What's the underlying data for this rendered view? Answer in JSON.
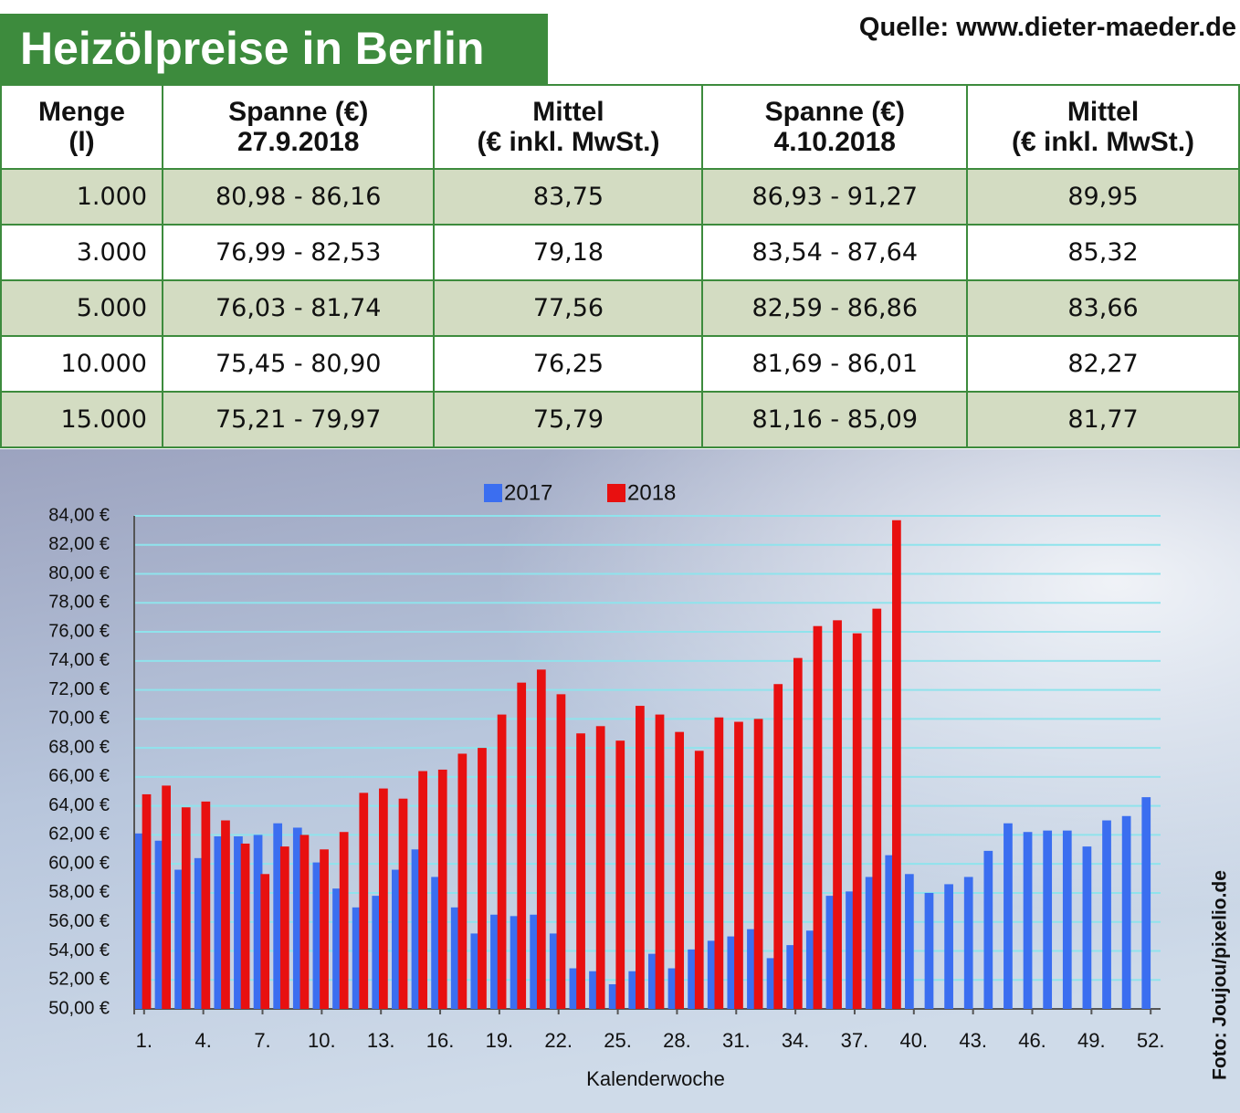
{
  "header": {
    "title": "Heizölpreise in Berlin",
    "source": "Quelle: www.dieter-maeder.de"
  },
  "table": {
    "columns": [
      [
        "Menge",
        "(l)"
      ],
      [
        "Spanne (€)",
        "27.9.2018"
      ],
      [
        "Mittel",
        "(€ inkl. MwSt.)"
      ],
      [
        "Spanne (€)",
        "4.10.2018"
      ],
      [
        "Mittel",
        "(€ inkl. MwSt.)"
      ]
    ],
    "rows": [
      [
        "1.000",
        "80,98 - 86,16",
        "83,75",
        "86,93 - 91,27",
        "89,95"
      ],
      [
        "3.000",
        "76,99 - 82,53",
        "79,18",
        "83,54 - 87,64",
        "85,32"
      ],
      [
        "5.000",
        "76,03 - 81,74",
        "77,56",
        "82,59 - 86,86",
        "83,66"
      ],
      [
        "10.000",
        "75,45 - 80,90",
        "76,25",
        "81,69 - 86,01",
        "82,27"
      ],
      [
        "15.000",
        "75,21 - 79,97",
        "75,79",
        "81,16 - 85,09",
        "81,77"
      ]
    ]
  },
  "chart_data": {
    "type": "bar",
    "x_label": "Kalenderwoche",
    "credit": "Foto: Joujou/pixelio.de",
    "categories": [
      "1.",
      null,
      null,
      "4.",
      null,
      null,
      "7.",
      null,
      null,
      "10.",
      null,
      null,
      "13.",
      null,
      null,
      "16.",
      null,
      null,
      "19.",
      null,
      null,
      "22.",
      null,
      null,
      "25.",
      null,
      null,
      "28.",
      null,
      null,
      "31.",
      null,
      null,
      "34.",
      null,
      null,
      "37.",
      null,
      null,
      "40.",
      null,
      null,
      "43.",
      null,
      null,
      "46.",
      null,
      null,
      "49.",
      null,
      null,
      "52."
    ],
    "series": [
      {
        "name": "2017",
        "color": "#3b6ef0",
        "values": [
          62.1,
          61.6,
          59.6,
          60.4,
          61.9,
          61.9,
          62.0,
          62.8,
          62.5,
          60.1,
          58.3,
          57.0,
          57.8,
          59.6,
          61.0,
          59.1,
          57.0,
          55.2,
          56.5,
          56.4,
          56.5,
          55.2,
          52.8,
          52.6,
          51.7,
          52.6,
          53.8,
          52.8,
          54.1,
          54.7,
          55.0,
          55.5,
          53.5,
          54.4,
          55.4,
          57.8,
          58.1,
          59.1,
          60.6,
          59.3,
          58.0,
          58.6,
          59.1,
          60.9,
          62.8,
          62.2,
          62.3,
          62.3,
          61.2,
          63.0,
          63.3,
          64.6
        ]
      },
      {
        "name": "2018",
        "color": "#e81010",
        "values": [
          64.8,
          65.4,
          63.9,
          64.3,
          63.0,
          61.4,
          59.3,
          61.2,
          62.0,
          61.0,
          62.2,
          64.9,
          65.2,
          64.5,
          66.4,
          66.5,
          67.6,
          68.0,
          70.3,
          72.5,
          73.4,
          71.7,
          69.0,
          69.5,
          68.5,
          70.9,
          70.3,
          69.1,
          67.8,
          70.1,
          69.8,
          70.0,
          72.4,
          74.2,
          76.4,
          76.8,
          75.9,
          77.6,
          83.7,
          null,
          null,
          null,
          null,
          null,
          null,
          null,
          null,
          null,
          null,
          null,
          null,
          null
        ]
      }
    ],
    "ylim": [
      50,
      84
    ],
    "yticks": [
      {
        "value": 50,
        "label": "50,00 €"
      },
      {
        "value": 52,
        "label": "52,00 €"
      },
      {
        "value": 54,
        "label": "54,00 €"
      },
      {
        "value": 56,
        "label": "56,00 €"
      },
      {
        "value": 58,
        "label": "58,00 €"
      },
      {
        "value": 60,
        "label": "60,00 €"
      },
      {
        "value": 62,
        "label": "62,00 €"
      },
      {
        "value": 64,
        "label": "64,00 €"
      },
      {
        "value": 66,
        "label": "66,00 €"
      },
      {
        "value": 68,
        "label": "68,00 €"
      },
      {
        "value": 70,
        "label": "70,00 €"
      },
      {
        "value": 72,
        "label": "72,00 €"
      },
      {
        "value": 74,
        "label": "74,00 €"
      },
      {
        "value": 76,
        "label": "76,00 €"
      },
      {
        "value": 78,
        "label": "78,00 €"
      },
      {
        "value": 80,
        "label": "80,00 €"
      },
      {
        "value": 82,
        "label": "82,00 €"
      },
      {
        "value": 84,
        "label": "84,00 €"
      }
    ],
    "grid": true
  }
}
